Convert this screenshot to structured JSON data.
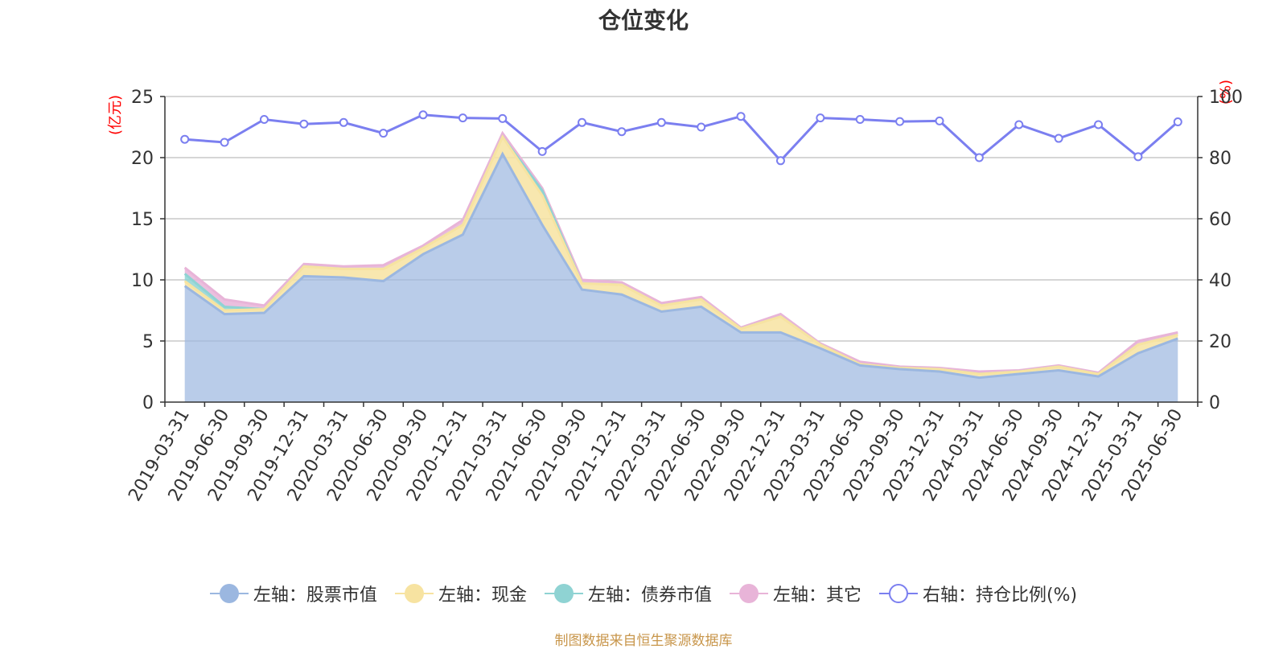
{
  "title": "仓位变化",
  "source_note": "制图数据来自恒生聚源数据库",
  "left_axis_unit": "(亿元)",
  "right_axis_unit": "(%)",
  "chart_data": {
    "type": "area",
    "title": "仓位变化",
    "categories": [
      "2019-03-31",
      "2019-06-30",
      "2019-09-30",
      "2019-12-31",
      "2020-03-31",
      "2020-06-30",
      "2020-09-30",
      "2020-12-31",
      "2021-03-31",
      "2021-06-30",
      "2021-09-30",
      "2021-12-31",
      "2022-03-31",
      "2022-06-30",
      "2022-09-30",
      "2022-12-31",
      "2023-03-31",
      "2023-06-30",
      "2023-09-30",
      "2023-12-31",
      "2024-03-31",
      "2024-06-30",
      "2024-09-30",
      "2024-12-31",
      "2025-03-31",
      "2025-06-30"
    ],
    "left_axis": {
      "min": 0,
      "max": 25,
      "ticks": [
        0,
        5,
        10,
        15,
        20,
        25
      ],
      "unit": "(亿元)"
    },
    "right_axis": {
      "min": 0,
      "max": 100,
      "ticks": [
        0,
        20,
        40,
        60,
        80,
        100
      ],
      "unit": "(%)"
    },
    "series": [
      {
        "name": "左轴：股票市值",
        "axis": "left",
        "kind": "stacked-area",
        "color": "#9bb7e0",
        "values": [
          9.5,
          7.2,
          7.3,
          10.3,
          10.2,
          9.9,
          12.1,
          13.7,
          20.3,
          14.5,
          9.2,
          8.8,
          7.4,
          7.8,
          5.7,
          5.7,
          4.4,
          3.0,
          2.7,
          2.5,
          2.0,
          2.3,
          2.6,
          2.1,
          4.0,
          5.2
        ]
      },
      {
        "name": "左轴：现金",
        "axis": "left",
        "kind": "stacked-area",
        "color": "#f7e3a1",
        "values": [
          0.4,
          0.3,
          0.3,
          0.8,
          0.7,
          1.0,
          0.5,
          0.8,
          1.4,
          2.4,
          0.5,
          0.8,
          0.5,
          0.6,
          0.3,
          1.3,
          0.3,
          0.1,
          0.1,
          0.2,
          0.3,
          0.2,
          0.3,
          0.2,
          0.7,
          0.3
        ]
      },
      {
        "name": "左轴：债券市值",
        "axis": "left",
        "kind": "stacked-area",
        "color": "#8fd3d3",
        "values": [
          0.6,
          0.3,
          0.0,
          0.0,
          0.0,
          0.0,
          0.0,
          0.0,
          0.0,
          0.4,
          0.0,
          0.0,
          0.0,
          0.0,
          0.0,
          0.0,
          0.0,
          0.0,
          0.0,
          0.0,
          0.0,
          0.0,
          0.0,
          0.0,
          0.0,
          0.0
        ]
      },
      {
        "name": "左轴：其它",
        "axis": "left",
        "kind": "stacked-area",
        "color": "#e8b4d8",
        "values": [
          0.5,
          0.6,
          0.3,
          0.2,
          0.2,
          0.3,
          0.2,
          0.4,
          0.3,
          0.2,
          0.3,
          0.2,
          0.2,
          0.2,
          0.1,
          0.2,
          0.1,
          0.2,
          0.1,
          0.1,
          0.2,
          0.1,
          0.1,
          0.1,
          0.3,
          0.2
        ]
      },
      {
        "name": "右轴：持仓比例(%)",
        "axis": "right",
        "kind": "line",
        "color": "#7b7ff0",
        "values": [
          86,
          85,
          92.5,
          91,
          91.5,
          88,
          94,
          93,
          92.8,
          82,
          91.5,
          88.5,
          91.5,
          90,
          93.5,
          79,
          93,
          92.5,
          91.8,
          92,
          80,
          90.8,
          86.3,
          90.8,
          80.3,
          91.7
        ]
      }
    ],
    "legend_position": "bottom",
    "grid": true
  }
}
